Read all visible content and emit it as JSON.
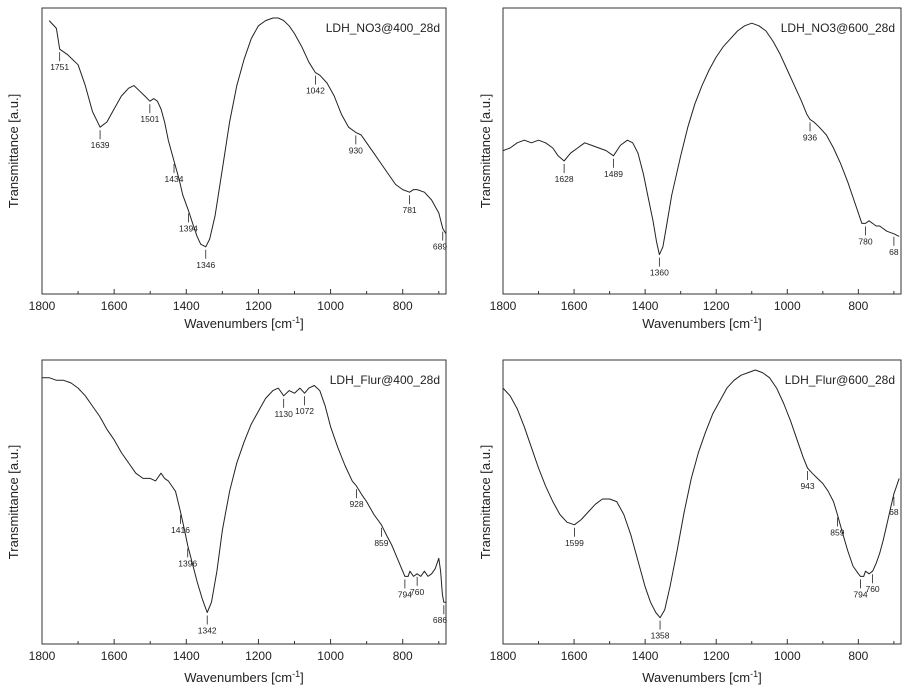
{
  "chart_data": [
    {
      "type": "line",
      "title": "LDH_NO3@400_28d",
      "xlabel": "Wavenumbers [cm",
      "xlabel_sup": "-1",
      "xlabel_close": "]",
      "ylabel": "Transmittance [a.u.]",
      "xlim": [
        1800,
        680
      ],
      "ylim": [
        0,
        1
      ],
      "y_note": "relative transmittance, no numeric scale printed",
      "ticks": [
        "1800",
        "1600",
        "1400",
        "1200",
        "1000",
        "800"
      ],
      "series": [
        {
          "x": [
            1780,
            1760,
            1751,
            1730,
            1700,
            1680,
            1660,
            1639,
            1620,
            1600,
            1580,
            1560,
            1545,
            1530,
            1515,
            1501,
            1490,
            1480,
            1470,
            1460,
            1450,
            1434,
            1420,
            1410,
            1394,
            1380,
            1370,
            1360,
            1346,
            1335,
            1320,
            1300,
            1280,
            1260,
            1240,
            1220,
            1200,
            1180,
            1160,
            1145,
            1130,
            1115,
            1100,
            1080,
            1060,
            1042,
            1030,
            1010,
            990,
            970,
            950,
            930,
            915,
            900,
            880,
            860,
            840,
            820,
            800,
            781,
            770,
            760,
            740,
            720,
            700,
            689,
            680
          ],
          "y": [
            0.99,
            0.96,
            0.88,
            0.86,
            0.82,
            0.74,
            0.64,
            0.58,
            0.6,
            0.65,
            0.7,
            0.73,
            0.74,
            0.72,
            0.7,
            0.68,
            0.69,
            0.68,
            0.65,
            0.6,
            0.53,
            0.45,
            0.38,
            0.32,
            0.26,
            0.2,
            0.16,
            0.13,
            0.12,
            0.15,
            0.24,
            0.42,
            0.6,
            0.74,
            0.84,
            0.92,
            0.97,
            0.99,
            1.0,
            1.0,
            0.99,
            0.97,
            0.94,
            0.89,
            0.83,
            0.79,
            0.78,
            0.75,
            0.7,
            0.63,
            0.58,
            0.56,
            0.55,
            0.52,
            0.48,
            0.44,
            0.4,
            0.36,
            0.34,
            0.33,
            0.34,
            0.34,
            0.33,
            0.3,
            0.25,
            0.19,
            0.17
          ]
        }
      ],
      "annotations": [
        {
          "label": "1751",
          "x": 1751,
          "side": "below"
        },
        {
          "label": "1639",
          "x": 1639,
          "side": "below"
        },
        {
          "label": "1501",
          "x": 1501,
          "side": "below"
        },
        {
          "label": "1434",
          "x": 1434,
          "side": "below"
        },
        {
          "label": "1394",
          "x": 1394,
          "side": "below"
        },
        {
          "label": "1346",
          "x": 1346,
          "side": "below"
        },
        {
          "label": "1042",
          "x": 1042,
          "side": "below"
        },
        {
          "label": "930",
          "x": 930,
          "side": "below"
        },
        {
          "label": "781",
          "x": 781,
          "side": "below"
        },
        {
          "label": "689",
          "x": 689,
          "side": "below"
        }
      ]
    },
    {
      "type": "line",
      "title": "LDH_NO3@600_28d",
      "xlabel": "Wavenumbers [cm",
      "xlabel_sup": "-1",
      "xlabel_close": "]",
      "ylabel": "Transmittance [a.u.]",
      "xlim": [
        1800,
        680
      ],
      "ylim": [
        0,
        1
      ],
      "y_note": "relative transmittance, no numeric scale printed",
      "ticks": [
        "1800",
        "1600",
        "1400",
        "1200",
        "1000",
        "800"
      ],
      "series": [
        {
          "x": [
            1800,
            1780,
            1760,
            1740,
            1720,
            1700,
            1680,
            1660,
            1645,
            1628,
            1610,
            1590,
            1570,
            1550,
            1530,
            1510,
            1489,
            1470,
            1450,
            1435,
            1420,
            1405,
            1390,
            1378,
            1368,
            1360,
            1350,
            1340,
            1325,
            1300,
            1280,
            1260,
            1240,
            1220,
            1200,
            1180,
            1160,
            1140,
            1120,
            1100,
            1080,
            1060,
            1040,
            1020,
            1000,
            980,
            960,
            945,
            936,
            925,
            910,
            890,
            870,
            850,
            830,
            810,
            795,
            790,
            780,
            770,
            760,
            750,
            740,
            730,
            720,
            700,
            685
          ],
          "y": [
            0.49,
            0.5,
            0.52,
            0.53,
            0.52,
            0.53,
            0.52,
            0.5,
            0.47,
            0.45,
            0.48,
            0.5,
            0.52,
            0.51,
            0.5,
            0.49,
            0.47,
            0.51,
            0.53,
            0.52,
            0.48,
            0.4,
            0.3,
            0.22,
            0.14,
            0.09,
            0.12,
            0.2,
            0.32,
            0.47,
            0.58,
            0.67,
            0.74,
            0.8,
            0.85,
            0.89,
            0.92,
            0.95,
            0.97,
            0.98,
            0.97,
            0.95,
            0.91,
            0.86,
            0.8,
            0.74,
            0.68,
            0.63,
            0.61,
            0.6,
            0.58,
            0.55,
            0.5,
            0.44,
            0.37,
            0.29,
            0.23,
            0.21,
            0.21,
            0.22,
            0.21,
            0.2,
            0.2,
            0.19,
            0.18,
            0.17,
            0.16
          ]
        }
      ],
      "annotations": [
        {
          "label": "1628",
          "x": 1628,
          "side": "below"
        },
        {
          "label": "1489",
          "x": 1489,
          "side": "below"
        },
        {
          "label": "1360",
          "x": 1360,
          "side": "below"
        },
        {
          "label": "936",
          "x": 936,
          "side": "below"
        },
        {
          "label": "780",
          "x": 780,
          "side": "below"
        },
        {
          "label": "68",
          "x": 700,
          "side": "below"
        }
      ]
    },
    {
      "type": "line",
      "title": "LDH_Flur@400_28d",
      "xlabel": "Wavenumbers [cm",
      "xlabel_sup": "-1",
      "xlabel_close": "]",
      "ylabel": "Transmittance [a.u.]",
      "xlim": [
        1800,
        680
      ],
      "ylim": [
        0,
        1
      ],
      "y_note": "relative transmittance, no numeric scale printed",
      "ticks": [
        "1800",
        "1600",
        "1400",
        "1200",
        "1000",
        "800"
      ],
      "series": [
        {
          "x": [
            1800,
            1780,
            1760,
            1740,
            1720,
            1700,
            1680,
            1660,
            1640,
            1620,
            1600,
            1580,
            1560,
            1540,
            1520,
            1500,
            1485,
            1470,
            1460,
            1450,
            1440,
            1430,
            1416,
            1405,
            1396,
            1385,
            1370,
            1355,
            1342,
            1330,
            1315,
            1300,
            1280,
            1260,
            1240,
            1220,
            1200,
            1180,
            1160,
            1145,
            1130,
            1115,
            1100,
            1085,
            1072,
            1060,
            1045,
            1030,
            1015,
            1000,
            980,
            960,
            940,
            928,
            915,
            900,
            880,
            859,
            845,
            830,
            815,
            800,
            794,
            785,
            780,
            770,
            760,
            750,
            740,
            730,
            720,
            710,
            700,
            695,
            690,
            686,
            680
          ],
          "y": [
            0.97,
            0.97,
            0.96,
            0.96,
            0.95,
            0.93,
            0.9,
            0.86,
            0.82,
            0.77,
            0.73,
            0.68,
            0.64,
            0.6,
            0.58,
            0.58,
            0.57,
            0.6,
            0.58,
            0.57,
            0.55,
            0.53,
            0.45,
            0.38,
            0.32,
            0.26,
            0.18,
            0.11,
            0.06,
            0.1,
            0.22,
            0.38,
            0.53,
            0.64,
            0.72,
            0.79,
            0.84,
            0.89,
            0.92,
            0.93,
            0.9,
            0.92,
            0.91,
            0.93,
            0.91,
            0.93,
            0.94,
            0.92,
            0.86,
            0.78,
            0.7,
            0.63,
            0.57,
            0.55,
            0.52,
            0.49,
            0.44,
            0.4,
            0.36,
            0.32,
            0.27,
            0.22,
            0.2,
            0.2,
            0.22,
            0.2,
            0.21,
            0.2,
            0.22,
            0.2,
            0.21,
            0.23,
            0.27,
            0.22,
            0.13,
            0.1,
            0.1
          ]
        }
      ],
      "annotations": [
        {
          "label": "1416",
          "x": 1416,
          "side": "below"
        },
        {
          "label": "1396",
          "x": 1396,
          "side": "below"
        },
        {
          "label": "1342",
          "x": 1342,
          "side": "below"
        },
        {
          "label": "1130",
          "x": 1130,
          "side": "below"
        },
        {
          "label": "1072",
          "x": 1072,
          "side": "below"
        },
        {
          "label": "928",
          "x": 928,
          "side": "below"
        },
        {
          "label": "859",
          "x": 859,
          "side": "below"
        },
        {
          "label": "794",
          "x": 794,
          "side": "below"
        },
        {
          "label": "760",
          "x": 760,
          "side": "below"
        },
        {
          "label": "686",
          "x": 686,
          "side": "below"
        }
      ]
    },
    {
      "type": "line",
      "title": "LDH_Flur@600_28d",
      "xlabel": "Wavenumbers [cm",
      "xlabel_sup": "-1",
      "xlabel_close": "]",
      "ylabel": "Transmittance [a.u.]",
      "xlim": [
        1800,
        680
      ],
      "ylim": [
        0,
        1
      ],
      "y_note": "relative transmittance, no numeric scale printed",
      "ticks": [
        "1800",
        "1600",
        "1400",
        "1200",
        "1000",
        "800"
      ],
      "series": [
        {
          "x": [
            1800,
            1780,
            1760,
            1740,
            1720,
            1700,
            1680,
            1660,
            1640,
            1620,
            1599,
            1580,
            1560,
            1540,
            1520,
            1500,
            1480,
            1460,
            1440,
            1420,
            1400,
            1385,
            1370,
            1358,
            1345,
            1330,
            1310,
            1290,
            1270,
            1250,
            1230,
            1210,
            1190,
            1170,
            1150,
            1130,
            1110,
            1090,
            1070,
            1050,
            1030,
            1010,
            990,
            970,
            955,
            943,
            930,
            915,
            900,
            885,
            870,
            859,
            845,
            830,
            815,
            800,
            794,
            785,
            780,
            770,
            760,
            750,
            740,
            730,
            720,
            710,
            700,
            685
          ],
          "y": [
            0.93,
            0.9,
            0.85,
            0.78,
            0.7,
            0.62,
            0.55,
            0.49,
            0.44,
            0.41,
            0.4,
            0.42,
            0.45,
            0.48,
            0.5,
            0.5,
            0.49,
            0.44,
            0.36,
            0.26,
            0.16,
            0.1,
            0.06,
            0.04,
            0.07,
            0.16,
            0.3,
            0.45,
            0.58,
            0.68,
            0.76,
            0.83,
            0.88,
            0.93,
            0.96,
            0.98,
            0.99,
            1.0,
            0.99,
            0.97,
            0.93,
            0.87,
            0.8,
            0.72,
            0.66,
            0.62,
            0.6,
            0.58,
            0.56,
            0.53,
            0.49,
            0.44,
            0.37,
            0.3,
            0.24,
            0.21,
            0.2,
            0.2,
            0.22,
            0.21,
            0.22,
            0.25,
            0.29,
            0.34,
            0.4,
            0.46,
            0.52,
            0.58
          ]
        }
      ],
      "annotations": [
        {
          "label": "1599",
          "x": 1599,
          "side": "below"
        },
        {
          "label": "1358",
          "x": 1358,
          "side": "below"
        },
        {
          "label": "943",
          "x": 943,
          "side": "below"
        },
        {
          "label": "859",
          "x": 859,
          "side": "below"
        },
        {
          "label": "794",
          "x": 794,
          "side": "below"
        },
        {
          "label": "760",
          "x": 760,
          "side": "below"
        },
        {
          "label": "68",
          "x": 700,
          "side": "below"
        }
      ]
    }
  ]
}
